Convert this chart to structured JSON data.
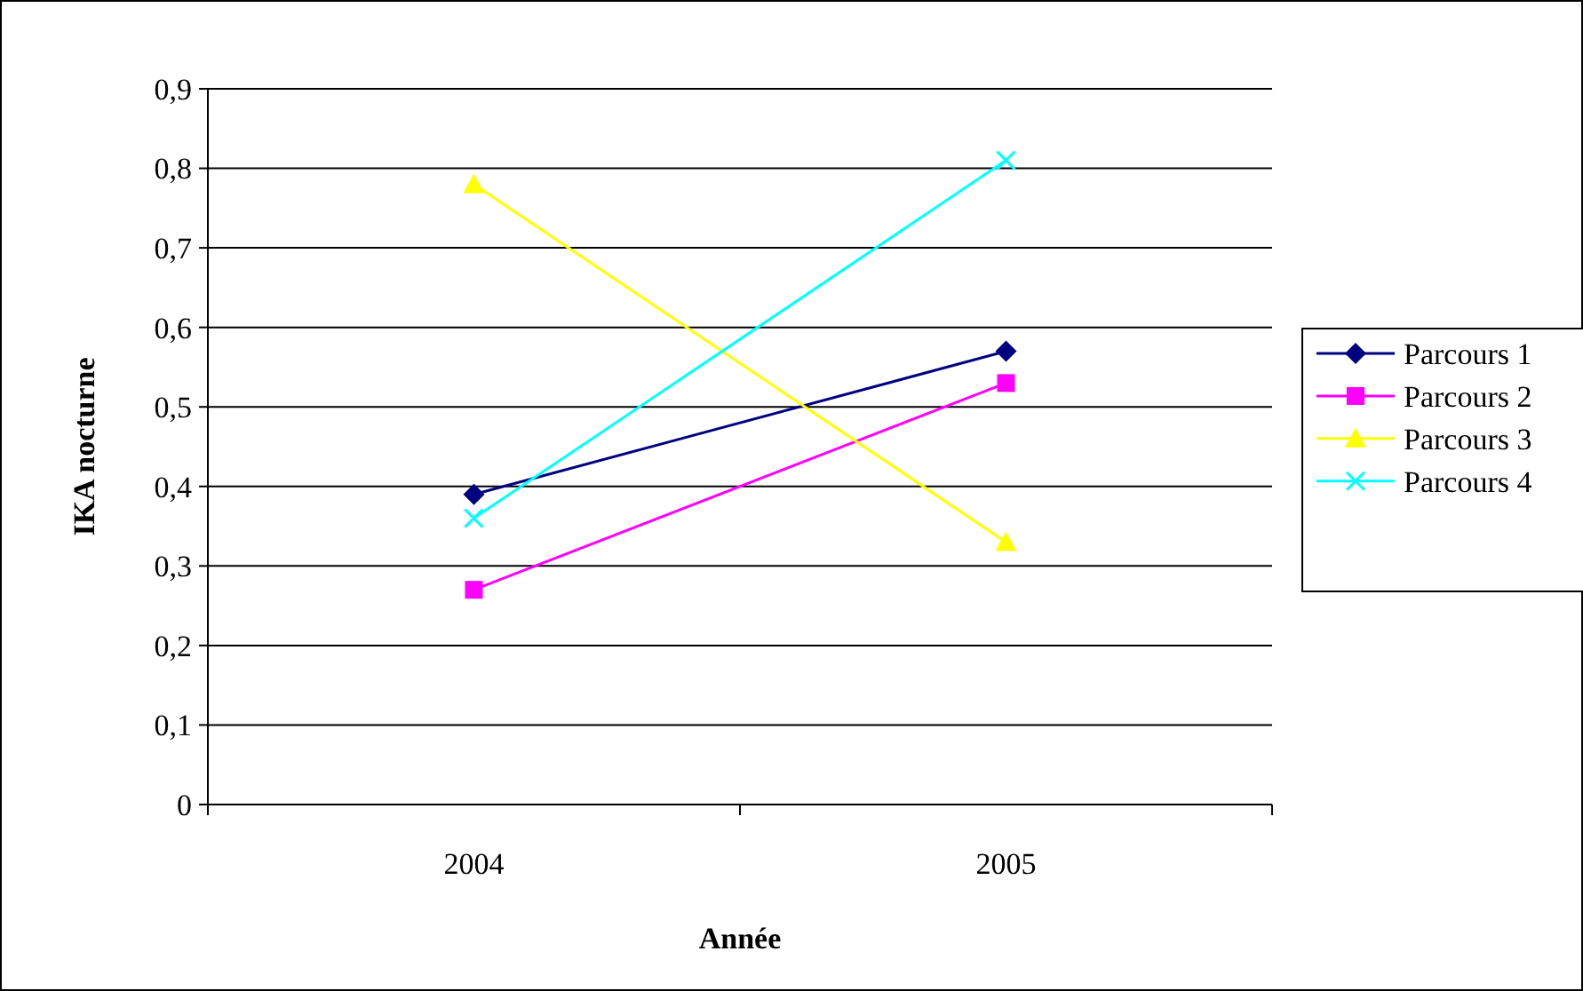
{
  "chart_data": {
    "type": "line",
    "xlabel": "Année",
    "ylabel": "IKA nocturne",
    "categories": [
      "2004",
      "2005"
    ],
    "series": [
      {
        "name": "Parcours 1",
        "color": "#000080",
        "marker": "diamond",
        "values": [
          0.39,
          0.57
        ]
      },
      {
        "name": "Parcours 2",
        "color": "#ff00ff",
        "marker": "square",
        "values": [
          0.27,
          0.53
        ]
      },
      {
        "name": "Parcours 3",
        "color": "#ffff00",
        "marker": "triangle",
        "values": [
          0.78,
          0.33
        ]
      },
      {
        "name": "Parcours 4",
        "color": "#00ffff",
        "marker": "cross",
        "values": [
          0.36,
          0.81
        ]
      }
    ],
    "ylim": [
      0,
      0.9
    ],
    "yticks": [
      {
        "value": 0,
        "label": "0"
      },
      {
        "value": 0.1,
        "label": "0,1"
      },
      {
        "value": 0.2,
        "label": "0,2"
      },
      {
        "value": 0.3,
        "label": "0,3"
      },
      {
        "value": 0.4,
        "label": "0,4"
      },
      {
        "value": 0.5,
        "label": "0,5"
      },
      {
        "value": 0.6,
        "label": "0,6"
      },
      {
        "value": 0.7,
        "label": "0,7"
      },
      {
        "value": 0.8,
        "label": "0,8"
      },
      {
        "value": 0.9,
        "label": "0,9"
      }
    ],
    "grid": "y",
    "legend": "right"
  }
}
